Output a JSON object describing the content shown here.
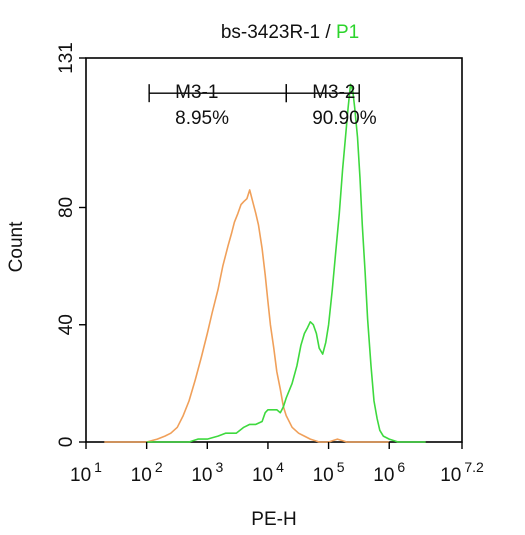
{
  "chart_data": {
    "type": "line",
    "title": {
      "prefix": "bs-3423R-1 / ",
      "highlight": "P1",
      "highlight_color": "#2bd42b"
    },
    "xlabel": "PE-H",
    "ylabel": "Count",
    "x_scale": "log",
    "xlim": [
      10,
      15848932
    ],
    "ylim": [
      0,
      131
    ],
    "x_ticks": [
      {
        "value": 10,
        "base": "10",
        "exp": "1"
      },
      {
        "value": 100,
        "base": "10",
        "exp": "2"
      },
      {
        "value": 1000,
        "base": "10",
        "exp": "3"
      },
      {
        "value": 10000,
        "base": "10",
        "exp": "4"
      },
      {
        "value": 100000,
        "base": "10",
        "exp": "5"
      },
      {
        "value": 1000000,
        "base": "10",
        "exp": "6"
      },
      {
        "value": 15848932,
        "base": "10",
        "exp": "7.2"
      }
    ],
    "y_ticks": [
      {
        "value": 0,
        "label": "0"
      },
      {
        "value": 40,
        "label": "40"
      },
      {
        "value": 80,
        "label": "80"
      },
      {
        "value": 131,
        "label": "131"
      }
    ],
    "grid": false,
    "legend": "none",
    "series": [
      {
        "color": "#f0a05a",
        "points": [
          [
            20,
            0
          ],
          [
            60,
            0
          ],
          [
            100,
            0
          ],
          [
            150,
            1
          ],
          [
            200,
            2
          ],
          [
            250,
            3
          ],
          [
            320,
            5
          ],
          [
            400,
            9
          ],
          [
            500,
            14
          ],
          [
            630,
            21
          ],
          [
            800,
            29
          ],
          [
            1000,
            37
          ],
          [
            1200,
            44
          ],
          [
            1500,
            52
          ],
          [
            1800,
            60
          ],
          [
            2200,
            67
          ],
          [
            2500,
            71
          ],
          [
            2800,
            75
          ],
          [
            3200,
            78
          ],
          [
            3600,
            81
          ],
          [
            4000,
            82
          ],
          [
            4500,
            83
          ],
          [
            5000,
            86
          ],
          [
            5600,
            82
          ],
          [
            6300,
            78
          ],
          [
            7000,
            74
          ],
          [
            8000,
            66
          ],
          [
            9000,
            57
          ],
          [
            10000,
            48
          ],
          [
            11000,
            40
          ],
          [
            12500,
            32
          ],
          [
            14000,
            24
          ],
          [
            16000,
            18
          ],
          [
            18000,
            12
          ],
          [
            20000,
            9
          ],
          [
            25000,
            5
          ],
          [
            32000,
            3
          ],
          [
            40000,
            2
          ],
          [
            50000,
            1
          ],
          [
            70000,
            0
          ],
          [
            100000,
            0
          ],
          [
            140000,
            1
          ],
          [
            200000,
            0
          ],
          [
            400000,
            0
          ],
          [
            1000000,
            0
          ]
        ]
      },
      {
        "color": "#3ed93e",
        "points": [
          [
            100,
            0
          ],
          [
            300,
            0
          ],
          [
            500,
            0
          ],
          [
            700,
            1
          ],
          [
            1000,
            1
          ],
          [
            1500,
            2
          ],
          [
            2000,
            3
          ],
          [
            3000,
            3
          ],
          [
            4000,
            5
          ],
          [
            5000,
            6
          ],
          [
            6300,
            6
          ],
          [
            8000,
            7
          ],
          [
            9000,
            10
          ],
          [
            10000,
            11
          ],
          [
            12000,
            11
          ],
          [
            14000,
            11
          ],
          [
            16000,
            10
          ],
          [
            18000,
            12
          ],
          [
            20000,
            15
          ],
          [
            25000,
            20
          ],
          [
            30000,
            26
          ],
          [
            35000,
            33
          ],
          [
            40000,
            37
          ],
          [
            45000,
            39
          ],
          [
            50000,
            41
          ],
          [
            56000,
            40
          ],
          [
            63000,
            37
          ],
          [
            70000,
            32
          ],
          [
            80000,
            30
          ],
          [
            90000,
            34
          ],
          [
            100000,
            40
          ],
          [
            115000,
            52
          ],
          [
            130000,
            64
          ],
          [
            150000,
            78
          ],
          [
            170000,
            93
          ],
          [
            190000,
            104
          ],
          [
            210000,
            114
          ],
          [
            230000,
            122
          ],
          [
            250000,
            120
          ],
          [
            270000,
            114
          ],
          [
            300000,
            104
          ],
          [
            330000,
            90
          ],
          [
            360000,
            74
          ],
          [
            400000,
            58
          ],
          [
            440000,
            42
          ],
          [
            500000,
            26
          ],
          [
            560000,
            14
          ],
          [
            630000,
            8
          ],
          [
            700000,
            4
          ],
          [
            800000,
            2
          ],
          [
            1000000,
            1
          ],
          [
            1400000,
            0
          ],
          [
            2000000,
            0
          ],
          [
            4000000,
            0
          ]
        ]
      }
    ],
    "markers": [
      {
        "label": "M3-1",
        "percent": "8.95%",
        "x_start": 110,
        "x_end": 20000,
        "y": 119
      },
      {
        "label": "M3-2",
        "percent": "90.90%",
        "x_start": 20000,
        "x_end": 320000,
        "y": 119
      }
    ]
  }
}
